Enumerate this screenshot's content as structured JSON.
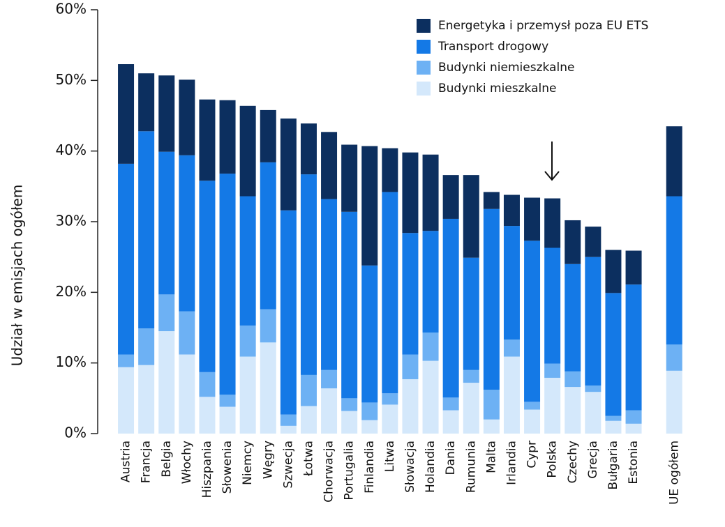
{
  "chart_data": {
    "type": "bar",
    "stacked": true,
    "y_label": "Udział w emisjach ogółem",
    "categories": [
      "Austria",
      "Francja",
      "Belgia",
      "Włochy",
      "Hiszpania",
      "Słowenia",
      "Niemcy",
      "Węgry",
      "Szwecja",
      "Łotwa",
      "Chorwacja",
      "Portugalia",
      "Finlandia",
      "Litwa",
      "Słowacja",
      "Holandia",
      "Dania",
      "Rumunia",
      "Malta",
      "Irlandia",
      "Cypr",
      "Polska",
      "Czechy",
      "Grecja",
      "Bułgaria",
      "Estonia",
      "UE ogółem"
    ],
    "series": [
      {
        "name": "Energetyka i przemysł poza EU ETS",
        "color": "#0c2f5f",
        "values": [
          14.1,
          8.2,
          10.8,
          10.7,
          11.5,
          10.4,
          12.8,
          7.4,
          13.0,
          7.2,
          9.5,
          9.5,
          16.9,
          6.2,
          11.4,
          10.8,
          6.2,
          11.7,
          2.4,
          4.4,
          6.1,
          7.0,
          6.2,
          4.3,
          6.1,
          4.8,
          9.9
        ]
      },
      {
        "name": "Transport drogowy",
        "color": "#1479e6",
        "values": [
          27.0,
          27.9,
          20.2,
          22.1,
          27.1,
          31.3,
          18.3,
          20.8,
          28.9,
          28.4,
          24.2,
          26.4,
          19.4,
          28.5,
          17.2,
          14.4,
          25.3,
          15.9,
          25.6,
          16.1,
          22.8,
          16.4,
          15.2,
          18.2,
          17.4,
          17.8,
          21.0
        ]
      },
      {
        "name": "Budynki niemieszkalne",
        "color": "#6db1f4",
        "values": [
          1.8,
          5.2,
          5.2,
          6.1,
          3.5,
          1.7,
          4.4,
          4.7,
          1.6,
          4.4,
          2.6,
          1.8,
          2.5,
          1.6,
          3.5,
          4.0,
          1.8,
          1.8,
          4.2,
          2.4,
          1.1,
          2.0,
          2.2,
          0.9,
          0.7,
          1.9,
          3.7
        ]
      },
      {
        "name": "Budynki mieszkalne",
        "color": "#d4e8fb",
        "values": [
          9.4,
          9.7,
          14.5,
          11.2,
          5.2,
          3.8,
          10.9,
          12.9,
          1.1,
          3.9,
          6.4,
          3.2,
          1.9,
          4.1,
          7.7,
          10.3,
          3.3,
          7.2,
          2.0,
          10.9,
          3.4,
          7.9,
          6.6,
          5.9,
          1.8,
          1.4,
          8.9
        ]
      }
    ],
    "ylim": [
      0,
      60
    ],
    "yticks": [
      {
        "value": 0,
        "label": "0%"
      },
      {
        "value": 10,
        "label": "10%"
      },
      {
        "value": 20,
        "label": "20%"
      },
      {
        "value": 30,
        "label": "30%"
      },
      {
        "value": 40,
        "label": "40%"
      },
      {
        "value": 50,
        "label": "50%"
      },
      {
        "value": 60,
        "label": "60%"
      }
    ],
    "legend": "upper right"
  }
}
